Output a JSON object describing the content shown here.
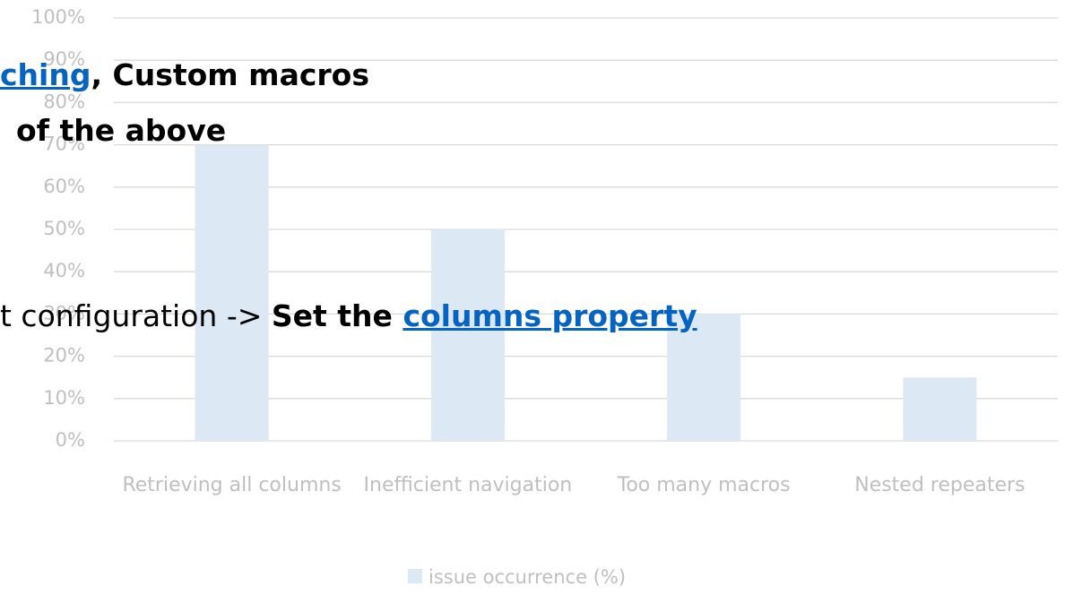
{
  "chart_data": {
    "type": "bar",
    "categories": [
      "Retrieving all columns",
      "Inefficient navigation",
      "Too many macros",
      "Nested repeaters"
    ],
    "series": [
      {
        "name": "issue occurrence (%)",
        "color": "#dde8f5",
        "values": [
          70,
          50,
          30,
          15
        ]
      }
    ],
    "ylim": [
      0,
      100
    ],
    "yticks": [
      {
        "value": 0,
        "label": "0%"
      },
      {
        "value": 10,
        "label": "10%"
      },
      {
        "value": 20,
        "label": "20%"
      },
      {
        "value": 30,
        "label": "30%"
      },
      {
        "value": 40,
        "label": "40%"
      },
      {
        "value": 50,
        "label": "50%"
      },
      {
        "value": 60,
        "label": "60%"
      },
      {
        "value": 70,
        "label": "70%"
      },
      {
        "value": 80,
        "label": "80%"
      },
      {
        "value": 90,
        "label": "90%"
      },
      {
        "value": 100,
        "label": "100%"
      }
    ],
    "grid": true,
    "legend": "bottom"
  },
  "overlay": [
    {
      "link": "ching",
      "text": ", Custom macros"
    },
    {
      "text": "of the above"
    },
    {
      "text": "t configuration -> ",
      "bold": "Set the ",
      "link": "columns property"
    }
  ]
}
